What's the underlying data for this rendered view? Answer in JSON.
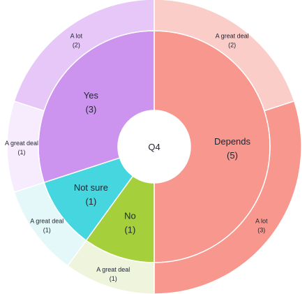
{
  "chart_data": {
    "type": "sunburst",
    "center_label": "Q4",
    "inner": [
      {
        "name": "Depends",
        "count": 5,
        "color": "#f7978d",
        "children": [
          {
            "name": "A great deal",
            "count": 2,
            "color": "#facdc8"
          },
          {
            "name": "A lot",
            "count": 3,
            "color": "#f7978d"
          }
        ]
      },
      {
        "name": "No",
        "count": 1,
        "color": "#a5cf3b",
        "children": [
          {
            "name": "A great deal",
            "count": 1,
            "color": "#eef5dc"
          }
        ]
      },
      {
        "name": "Not sure",
        "count": 1,
        "color": "#45d6df",
        "children": [
          {
            "name": "A great deal",
            "count": 1,
            "color": "#e5f8f9"
          }
        ]
      },
      {
        "name": "Yes",
        "count": 3,
        "color": "#cc94ef",
        "children": [
          {
            "name": "A great deal",
            "count": 1,
            "color": "#f6ecfd"
          },
          {
            "name": "A lot",
            "count": 2,
            "color": "#e7c7f7"
          }
        ]
      }
    ]
  }
}
